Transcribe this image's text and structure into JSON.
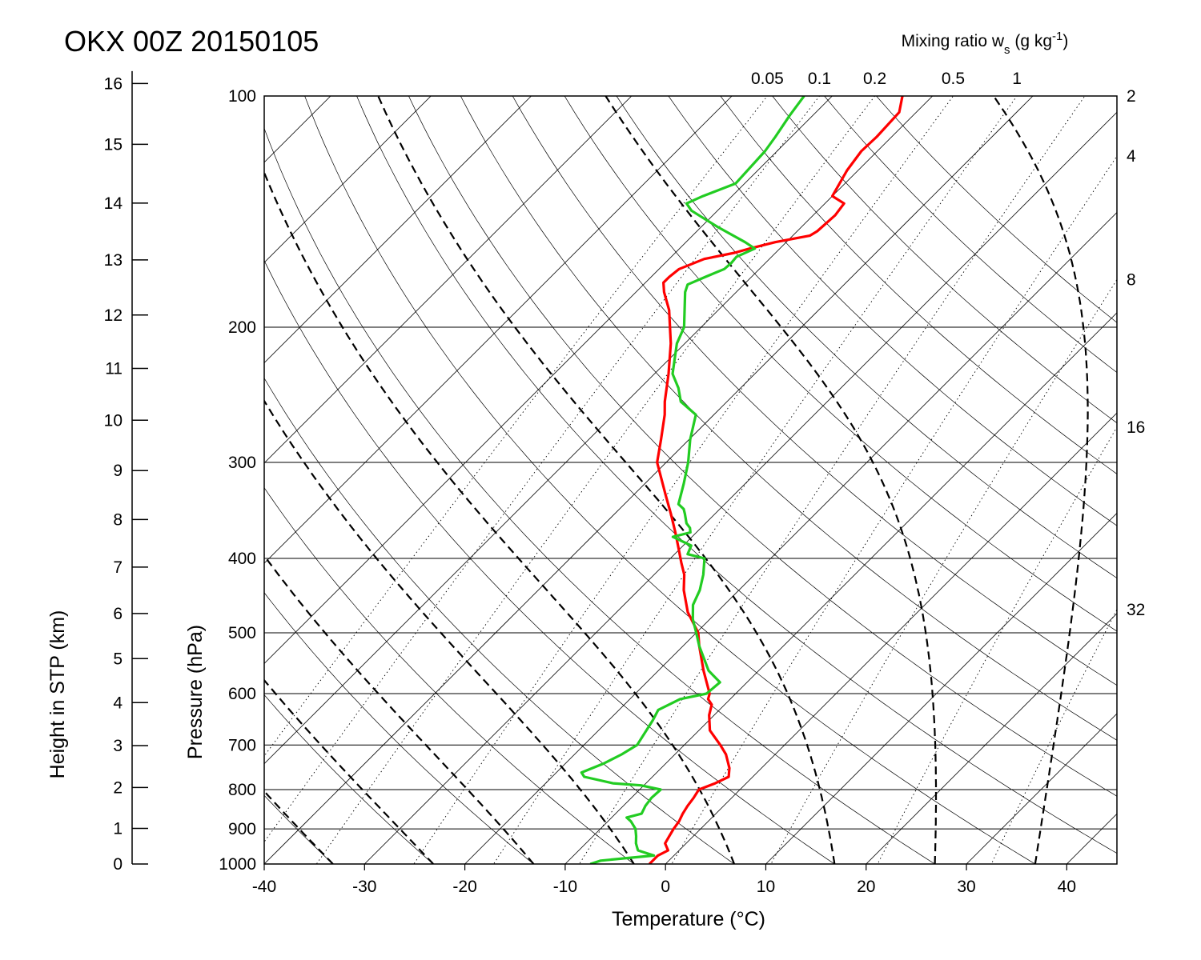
{
  "page": {
    "title": "OKX 00Z 20150105"
  },
  "colors": {
    "temperature": "#ff0000",
    "dewpoint": "#22cc22",
    "lines": "#000000",
    "background": "#ffffff"
  },
  "chart_data": {
    "type": "line",
    "subtype": "skew-T log-P",
    "title": "OKX 00Z 20150105",
    "xlabel": "Temperature (°C)",
    "ylabel": "Pressure (hPa)",
    "y2label": "Height in STP (km)",
    "mixing_ratio_header": "Mixing ratio w",
    "mixing_ratio_sub": "s",
    "mixing_ratio_units": " (g kg",
    "mixing_ratio_exp": "-1",
    "mixing_ratio_close": ")",
    "xlim": [
      -40,
      45
    ],
    "ylim": [
      1000,
      100
    ],
    "y_scale": "log",
    "grid": true,
    "x_ticks": [
      "-40",
      "-30",
      "-20",
      "-10",
      "0",
      "10",
      "20",
      "30",
      "40"
    ],
    "pressure_ticks": [
      "100",
      "200",
      "300",
      "400",
      "500",
      "600",
      "700",
      "800",
      "900",
      "1000"
    ],
    "height_ticks_km": [
      "0",
      "1",
      "2",
      "3",
      "4",
      "5",
      "6",
      "7",
      "8",
      "9",
      "10",
      "11",
      "12",
      "13",
      "14",
      "15",
      "16"
    ],
    "mixing_ratio_top_labels": [
      "0.05",
      "0.1",
      "0.2",
      "0.5",
      "1"
    ],
    "mixing_ratio_side_labels": [
      "2",
      "4",
      "8",
      "16",
      "32"
    ],
    "mixing_ratio_values": [
      0.05,
      0.1,
      0.2,
      0.5,
      1,
      2,
      4,
      8,
      16,
      32
    ],
    "dry_adiabats_theta_K": [
      200,
      210,
      220,
      230,
      240,
      250,
      260,
      270,
      280,
      290,
      300,
      310,
      320,
      330,
      340,
      350,
      360,
      370,
      380,
      390,
      400,
      410,
      420
    ],
    "moist_adiabats_theta_e_K": [
      200,
      210,
      220,
      230,
      240,
      250,
      260,
      270,
      280,
      290,
      300,
      310,
      320,
      330,
      340,
      350,
      360,
      370,
      380,
      390,
      400,
      410
    ],
    "series": [
      {
        "name": "Temperature",
        "color": "#ff0000",
        "points": [
          [
            1000,
            -1.6
          ],
          [
            975,
            -1.6
          ],
          [
            960,
            -1.1
          ],
          [
            940,
            -2.1
          ],
          [
            920,
            -2.4
          ],
          [
            900,
            -2.7
          ],
          [
            880,
            -2.9
          ],
          [
            860,
            -3.3
          ],
          [
            840,
            -3.6
          ],
          [
            820,
            -3.8
          ],
          [
            800,
            -4.1
          ],
          [
            785,
            -3.1
          ],
          [
            770,
            -2.4
          ],
          [
            750,
            -3.2
          ],
          [
            720,
            -4.9
          ],
          [
            700,
            -6.4
          ],
          [
            670,
            -8.9
          ],
          [
            640,
            -10.5
          ],
          [
            620,
            -11.3
          ],
          [
            610,
            -12.2
          ],
          [
            600,
            -12.6
          ],
          [
            560,
            -15.5
          ],
          [
            520,
            -18.4
          ],
          [
            500,
            -19.8
          ],
          [
            470,
            -22.9
          ],
          [
            440,
            -25.5
          ],
          [
            420,
            -27.0
          ],
          [
            405,
            -28.5
          ],
          [
            390,
            -30.0
          ],
          [
            370,
            -32.1
          ],
          [
            350,
            -34.4
          ],
          [
            330,
            -36.9
          ],
          [
            300,
            -40.9
          ],
          [
            280,
            -42.8
          ],
          [
            260,
            -44.9
          ],
          [
            250,
            -46.2
          ],
          [
            230,
            -48.6
          ],
          [
            210,
            -51.4
          ],
          [
            190,
            -54.9
          ],
          [
            180,
            -57.2
          ],
          [
            175,
            -58.2
          ],
          [
            172,
            -58.2
          ],
          [
            168,
            -58.0
          ],
          [
            163,
            -56.5
          ],
          [
            160,
            -54.1
          ],
          [
            158,
            -53.0
          ],
          [
            155,
            -51.1
          ],
          [
            152,
            -48.3
          ],
          [
            150,
            -48.0
          ],
          [
            143,
            -47.8
          ],
          [
            138,
            -48.1
          ],
          [
            135,
            -50.0
          ],
          [
            125,
            -51.1
          ],
          [
            118,
            -51.6
          ],
          [
            113,
            -51.5
          ],
          [
            105,
            -51.7
          ],
          [
            100,
            -53.0
          ]
        ]
      },
      {
        "name": "Dewpoint",
        "color": "#22cc22",
        "points": [
          [
            1000,
            -7.5
          ],
          [
            990,
            -6.8
          ],
          [
            975,
            -2.0
          ],
          [
            960,
            -4.1
          ],
          [
            940,
            -5.0
          ],
          [
            920,
            -5.7
          ],
          [
            900,
            -6.5
          ],
          [
            880,
            -7.7
          ],
          [
            870,
            -8.5
          ],
          [
            860,
            -7.4
          ],
          [
            840,
            -7.8
          ],
          [
            820,
            -8.0
          ],
          [
            800,
            -7.9
          ],
          [
            790,
            -10.3
          ],
          [
            785,
            -13.3
          ],
          [
            770,
            -16.8
          ],
          [
            760,
            -17.5
          ],
          [
            740,
            -16.2
          ],
          [
            720,
            -15.3
          ],
          [
            700,
            -14.7
          ],
          [
            650,
            -15.6
          ],
          [
            630,
            -16.1
          ],
          [
            610,
            -15.0
          ],
          [
            600,
            -12.9
          ],
          [
            580,
            -12.7
          ],
          [
            560,
            -15.0
          ],
          [
            520,
            -18.4
          ],
          [
            500,
            -20.0
          ],
          [
            480,
            -21.7
          ],
          [
            460,
            -23.1
          ],
          [
            440,
            -23.9
          ],
          [
            420,
            -25.1
          ],
          [
            400,
            -26.6
          ],
          [
            395,
            -28.7
          ],
          [
            385,
            -29.2
          ],
          [
            375,
            -31.9
          ],
          [
            370,
            -30.6
          ],
          [
            365,
            -31.1
          ],
          [
            360,
            -31.9
          ],
          [
            350,
            -33.0
          ],
          [
            345,
            -33.6
          ],
          [
            340,
            -34.6
          ],
          [
            320,
            -36.1
          ],
          [
            300,
            -37.8
          ],
          [
            280,
            -39.9
          ],
          [
            260,
            -41.8
          ],
          [
            250,
            -44.6
          ],
          [
            240,
            -46.2
          ],
          [
            230,
            -48.2
          ],
          [
            210,
            -50.8
          ],
          [
            200,
            -51.7
          ],
          [
            180,
            -55.1
          ],
          [
            176,
            -55.6
          ],
          [
            172,
            -54.6
          ],
          [
            168,
            -53.5
          ],
          [
            165,
            -53.4
          ],
          [
            162,
            -53.5
          ],
          [
            158,
            -52.5
          ],
          [
            155,
            -54.1
          ],
          [
            148,
            -58.4
          ],
          [
            141,
            -62.6
          ],
          [
            138,
            -63.8
          ],
          [
            135,
            -62.9
          ],
          [
            133,
            -62.1
          ],
          [
            130,
            -60.9
          ],
          [
            118,
            -61.2
          ],
          [
            113,
            -61.6
          ],
          [
            106,
            -62.3
          ],
          [
            100,
            -62.8
          ]
        ]
      }
    ]
  }
}
